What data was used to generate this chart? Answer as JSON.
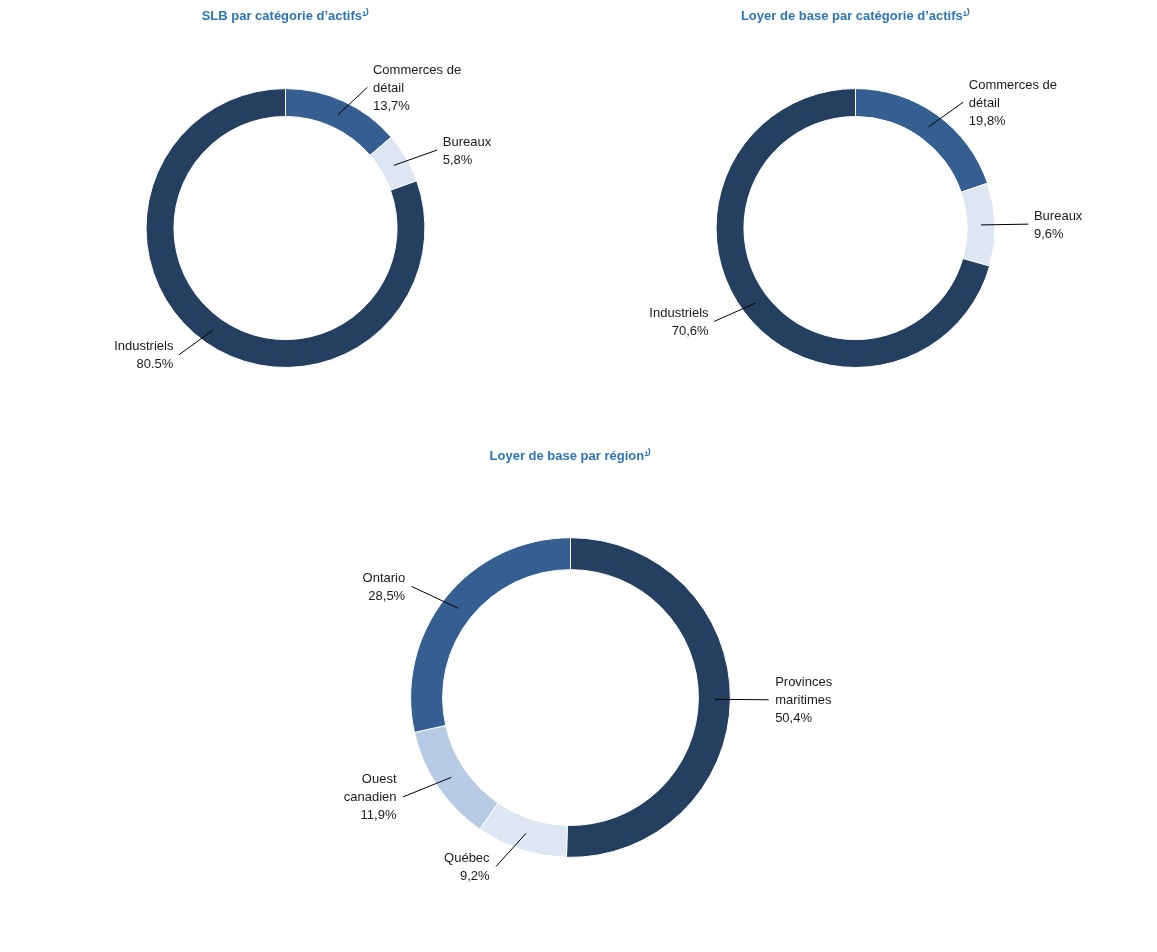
{
  "chart_data": [
    {
      "type": "donut",
      "title": "SLB par catégorie d’actifs¹⁾",
      "categories": [
        "Commerces de détail",
        "Bureaux",
        "Industriels"
      ],
      "values": [
        13.7,
        5.8,
        80.5
      ],
      "colors": [
        "#355f91",
        "#dde6f2",
        "#243f5f"
      ],
      "value_labels": [
        "13,7%",
        "5,8%",
        "80.5%"
      ]
    },
    {
      "type": "donut",
      "title": "Loyer de base par catégorie d’actifs¹⁾",
      "categories": [
        "Commerces de détail",
        "Bureaux",
        "Industriels"
      ],
      "values": [
        19.8,
        9.6,
        70.6
      ],
      "colors": [
        "#355f91",
        "#dde6f2",
        "#243f5f"
      ],
      "value_labels": [
        "19,8%",
        "9,6%",
        "70,6%"
      ]
    },
    {
      "type": "donut",
      "title": "Loyer de base par région¹⁾",
      "categories": [
        "Provinces maritimes",
        "Québec",
        "Ouest canadien",
        "Ontario"
      ],
      "values": [
        50.4,
        9.2,
        11.9,
        28.5
      ],
      "colors": [
        "#243f5f",
        "#dde6f2",
        "#b7cce4",
        "#355f91"
      ],
      "value_labels": [
        "50,4%",
        "9,2%",
        "11,9%",
        "28,5%"
      ]
    }
  ]
}
